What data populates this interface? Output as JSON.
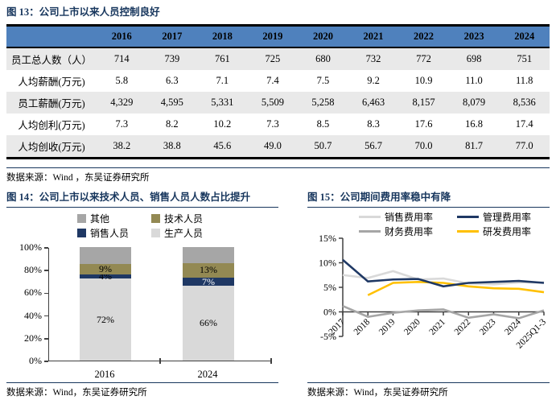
{
  "colors": {
    "navy": "#17365d",
    "header_blue": "#4f81bd",
    "stripe_gray": "#e9e9e9",
    "axis_gray": "#404040"
  },
  "fig13": {
    "title": "图 13：公司上市以来人员控制良好",
    "source": "数据来源：Wind ，东吴证券研究所",
    "table": {
      "header": [
        "",
        "2016",
        "2017",
        "2018",
        "2019",
        "2020",
        "2021",
        "2022",
        "2023",
        "2024"
      ],
      "rows": [
        {
          "label": "员工总人数（人）",
          "values": [
            "714",
            "739",
            "761",
            "725",
            "680",
            "732",
            "772",
            "698",
            "751"
          ]
        },
        {
          "label": "人均薪酬(万元)",
          "values": [
            "5.8",
            "6.3",
            "7.1",
            "7.4",
            "7.5",
            "9.2",
            "10.9",
            "11.0",
            "11.8"
          ]
        },
        {
          "label": "员工薪酬(万元)",
          "values": [
            "4,329",
            "4,595",
            "5,331",
            "5,509",
            "5,258",
            "6,463",
            "8,157",
            "8,079",
            "8,536"
          ]
        },
        {
          "label": "人均创利(万元)",
          "values": [
            "7.3",
            "8.2",
            "10.2",
            "7.3",
            "8.5",
            "8.3",
            "17.6",
            "16.8",
            "17.4"
          ]
        },
        {
          "label": "人均创收(万元)",
          "values": [
            "38.2",
            "38.8",
            "45.6",
            "49.0",
            "50.7",
            "56.7",
            "70.0",
            "81.7",
            "77.0"
          ]
        }
      ]
    }
  },
  "fig14": {
    "title": "图 14：公司上市以来技术人员、销售人员人数占比提升",
    "source": "数据来源：Wind，东吴证券研究所",
    "chart_data": {
      "type": "bar",
      "stacked": true,
      "categories": [
        "2016",
        "2024"
      ],
      "series": [
        {
          "name": "生产人员",
          "color": "#d9d9d9",
          "values": [
            72,
            66
          ],
          "labels": [
            "72%",
            "66%"
          ],
          "label_colors": [
            "#000000",
            "#000000"
          ]
        },
        {
          "name": "销售人员",
          "color": "#1f3864",
          "values": [
            4,
            7
          ],
          "labels": [
            "4%",
            "7%"
          ],
          "label_colors": [
            "#000000",
            "#ffffff"
          ]
        },
        {
          "name": "技术人员",
          "color": "#938953",
          "values": [
            9,
            13
          ],
          "labels": [
            "9%",
            "13%"
          ],
          "label_colors": [
            "#000000",
            "#000000"
          ]
        },
        {
          "name": "其他",
          "color": "#a6a6a6",
          "values": [
            15,
            14
          ],
          "labels": [
            "",
            ""
          ],
          "label_colors": [
            "#000000",
            "#000000"
          ]
        }
      ],
      "legend": [
        {
          "label": "其他",
          "color": "#a6a6a6"
        },
        {
          "label": "技术人员",
          "color": "#938953"
        },
        {
          "label": "销售人员",
          "color": "#1f3864"
        },
        {
          "label": "生产人员",
          "color": "#d9d9d9"
        }
      ],
      "ylim": [
        0,
        100
      ],
      "yticks": [
        {
          "v": 0,
          "t": "0%"
        },
        {
          "v": 20,
          "t": "20%"
        },
        {
          "v": 40,
          "t": "40%"
        },
        {
          "v": 60,
          "t": "60%"
        },
        {
          "v": 80,
          "t": "80%"
        },
        {
          "v": 100,
          "t": "100%"
        }
      ],
      "legend_position": "top",
      "grid": false
    }
  },
  "fig15": {
    "title": "图 15：公司期间费用率稳中有降",
    "source": "数据来源：Wind，东吴证券研究所",
    "chart_data": {
      "type": "line",
      "x": [
        "2017",
        "2018",
        "2019",
        "2020",
        "2021",
        "2022",
        "2023",
        "2024",
        "2025Q1-3"
      ],
      "series": [
        {
          "name": "销售费用率",
          "color": "#d9d9d9",
          "values": [
            7.5,
            6.9,
            8.3,
            6.6,
            6.8,
            5.8,
            5.6,
            6.0,
            6.0
          ]
        },
        {
          "name": "财务费用率",
          "color": "#a6a6a6",
          "values": [
            1.2,
            -1.0,
            -0.2,
            0.3,
            0.5,
            -1.2,
            -0.5,
            -1.3,
            0.3
          ]
        },
        {
          "name": "研发费用率",
          "color": "#ffc000",
          "values": [
            null,
            3.4,
            5.9,
            6.1,
            5.9,
            5.2,
            4.8,
            4.7,
            4.0
          ]
        },
        {
          "name": "管理费用率",
          "color": "#1f3864",
          "values": [
            10.6,
            6.2,
            6.6,
            6.7,
            5.2,
            5.9,
            6.1,
            6.3,
            5.9
          ]
        }
      ],
      "legend": [
        {
          "label": "销售费用率",
          "color": "#d9d9d9"
        },
        {
          "label": "管理费用率",
          "color": "#1f3864"
        },
        {
          "label": "财务费用率",
          "color": "#a6a6a6"
        },
        {
          "label": "研发费用率",
          "color": "#ffc000"
        }
      ],
      "ylim": [
        -5,
        15
      ],
      "yticks": [
        {
          "v": -5,
          "t": "-5%"
        },
        {
          "v": 0,
          "t": "0%"
        },
        {
          "v": 5,
          "t": "5%"
        },
        {
          "v": 10,
          "t": "10%"
        },
        {
          "v": 15,
          "t": "15%"
        }
      ],
      "legend_position": "top",
      "grid": false,
      "x_label_rotation": -45
    }
  }
}
